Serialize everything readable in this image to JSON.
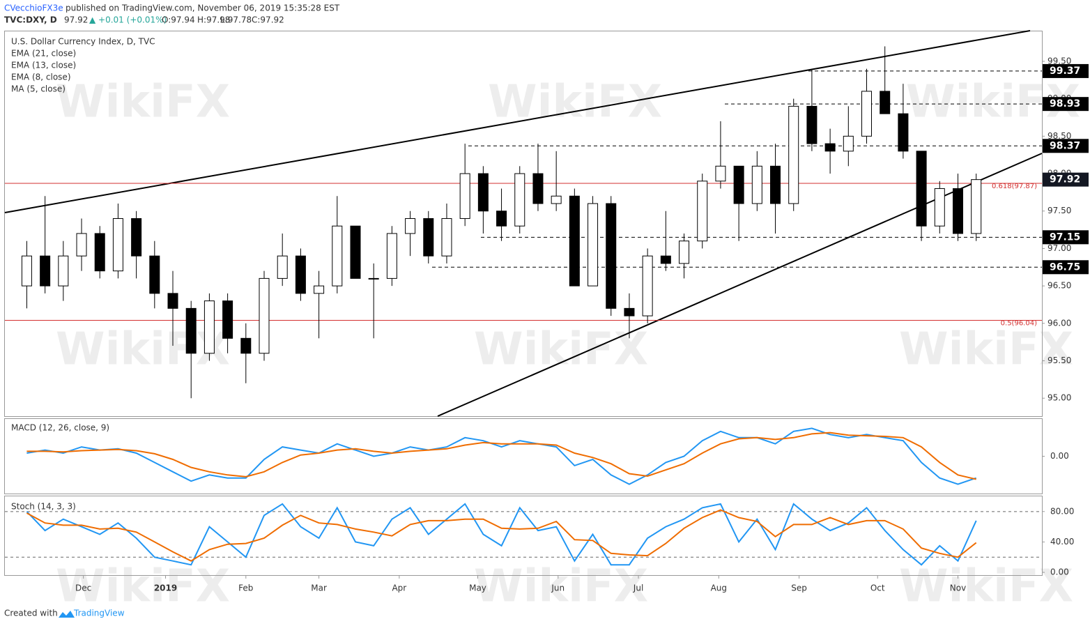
{
  "header": {
    "author": "CVecchioFX3e",
    "published": "published on TradingView.com, November 06, 2019 15:35:28 EST",
    "symbol": "TVC:DXY, D",
    "last": "97.92",
    "change": "▲ +0.01 (+0.01%)",
    "open": "O:97.94",
    "high": "H:97.98",
    "low": "L:97.78",
    "close": "C:97.92"
  },
  "footer": {
    "created": "Created with",
    "brand": "TradingView"
  },
  "watermark": "WikiFX",
  "chart_data": {
    "type": "candlestick",
    "legend": [
      "U.S. Dollar Currency Index, D, TVC",
      "EMA (21, close)",
      "EMA (13, close)",
      "EMA (8, close)",
      "MA (5, close)"
    ],
    "categories": [
      null,
      null,
      null,
      null,
      null,
      null,
      null,
      null,
      null,
      null,
      null,
      null,
      null,
      null,
      null,
      null,
      null,
      null,
      null,
      null,
      null,
      null,
      null,
      null,
      null,
      null,
      null,
      null,
      null,
      null,
      null,
      null,
      null,
      null,
      null,
      null,
      null,
      null,
      null,
      null,
      null,
      null,
      null,
      null,
      null,
      null,
      null,
      null,
      null,
      null,
      null,
      null,
      null
    ],
    "xlim": [
      -1.2,
      55.6
    ],
    "xticks": [
      {
        "value": 3.1,
        "label": "Dec"
      },
      {
        "value": 7.6,
        "label": "2019"
      },
      {
        "value": 12,
        "label": "Feb"
      },
      {
        "value": 16,
        "label": "Mar"
      },
      {
        "value": 20.4,
        "label": "Apr"
      },
      {
        "value": 24.7,
        "label": "May"
      },
      {
        "value": 29.1,
        "label": "Jun"
      },
      {
        "value": 33.5,
        "label": "Jul"
      },
      {
        "value": 37.9,
        "label": "Aug"
      },
      {
        "value": 42.3,
        "label": "Sep"
      },
      {
        "value": 46.6,
        "label": "Oct"
      },
      {
        "value": 51,
        "label": "Nov"
      }
    ],
    "open": [
      96.5,
      96.9,
      96.5,
      96.9,
      97.2,
      96.7,
      97.4,
      96.9,
      96.4,
      96.2,
      95.6,
      96.3,
      95.8,
      95.6,
      96.6,
      96.9,
      96.4,
      96.5,
      97.3,
      96.6,
      96.6,
      97.2,
      97.4,
      96.9,
      97.4,
      98.0,
      97.5,
      97.3,
      98.0,
      97.6,
      97.7,
      96.5,
      97.6,
      96.2,
      96.1,
      96.9,
      96.8,
      97.1,
      97.9,
      98.1,
      97.6,
      98.1,
      97.6,
      98.9,
      98.4,
      98.3,
      98.5,
      99.1,
      98.8,
      98.3,
      97.3,
      97.8,
      97.2
    ],
    "high": [
      97.1,
      97.7,
      97.1,
      97.4,
      97.3,
      97.6,
      97.5,
      97.1,
      96.7,
      96.3,
      96.4,
      96.4,
      96.0,
      96.7,
      97.2,
      97.0,
      96.7,
      97.7,
      97.3,
      96.8,
      97.3,
      97.5,
      97.5,
      97.6,
      98.4,
      98.1,
      97.8,
      98.1,
      98.4,
      98.3,
      97.8,
      97.7,
      97.7,
      96.4,
      97.0,
      97.5,
      97.2,
      98.0,
      98.7,
      98.1,
      98.3,
      98.4,
      99.0,
      99.4,
      98.6,
      98.9,
      99.4,
      99.7,
      99.2,
      98.3,
      97.9,
      98.0,
      98.0
    ],
    "low": [
      96.2,
      96.4,
      96.3,
      96.7,
      96.6,
      96.6,
      96.6,
      96.2,
      95.7,
      95.0,
      95.5,
      95.6,
      95.2,
      95.5,
      96.5,
      96.3,
      95.8,
      96.4,
      96.6,
      95.8,
      96.5,
      96.9,
      96.8,
      96.8,
      97.3,
      97.2,
      97.1,
      97.2,
      97.5,
      97.5,
      96.5,
      96.5,
      96.1,
      95.8,
      96.0,
      96.7,
      96.6,
      97.0,
      97.8,
      97.1,
      97.5,
      97.2,
      97.5,
      98.3,
      98.0,
      98.1,
      98.4,
      98.8,
      98.2,
      97.1,
      97.2,
      97.1,
      97.1
    ],
    "close": [
      96.9,
      96.5,
      96.9,
      97.2,
      96.7,
      97.4,
      96.9,
      96.4,
      96.2,
      95.6,
      96.3,
      95.8,
      95.6,
      96.6,
      96.9,
      96.4,
      96.5,
      97.3,
      96.6,
      96.6,
      97.2,
      97.4,
      96.9,
      97.4,
      98.0,
      97.5,
      97.3,
      98.0,
      97.6,
      97.7,
      96.5,
      97.6,
      96.2,
      96.1,
      96.9,
      96.8,
      97.1,
      97.9,
      98.1,
      97.6,
      98.1,
      97.6,
      98.9,
      98.4,
      98.3,
      98.5,
      99.1,
      98.8,
      98.3,
      97.3,
      97.8,
      97.2,
      97.92
    ],
    "up_color": "#ffffff",
    "down_color": "#000000",
    "ylim": [
      94.76,
      99.9
    ],
    "yticks": [
      {
        "value": 95,
        "label": "95.00"
      },
      {
        "value": 95.5,
        "label": "95.50"
      },
      {
        "value": 96,
        "label": "96.00"
      },
      {
        "value": 96.5,
        "label": "96.50"
      },
      {
        "value": 97,
        "label": "97.00"
      },
      {
        "value": 97.5,
        "label": "97.50"
      },
      {
        "value": 98,
        "label": "98.00"
      },
      {
        "value": 98.5,
        "label": "98.50"
      },
      {
        "value": 99,
        "label": "99.00"
      },
      {
        "value": 99.5,
        "label": "99.50"
      }
    ],
    "levels": [
      99.37,
      98.93,
      98.37,
      97.15,
      96.75
    ],
    "last_price": 97.92,
    "fib": [
      {
        "value": 97.87,
        "label": "0.618(97.87)"
      },
      {
        "value": 96.04,
        "label": "0.5(96.04)"
      }
    ],
    "fib_color": "#d32f2f",
    "macd": {
      "title": "MACD (12, 26, close, 9)",
      "ylim": [
        -0.6,
        0.6
      ],
      "yticks": [
        {
          "value": 0,
          "label": "0.00"
        }
      ],
      "series": [
        {
          "color": "#2196f3",
          "values": [
            0.05,
            0.1,
            0.05,
            0.15,
            0.1,
            0.12,
            0.05,
            -0.1,
            -0.25,
            -0.4,
            -0.3,
            -0.35,
            -0.35,
            -0.05,
            0.15,
            0.1,
            0.05,
            0.2,
            0.1,
            0.0,
            0.05,
            0.15,
            0.1,
            0.15,
            0.3,
            0.25,
            0.15,
            0.25,
            0.2,
            0.15,
            -0.15,
            -0.05,
            -0.3,
            -0.45,
            -0.3,
            -0.1,
            0.0,
            0.25,
            0.4,
            0.3,
            0.3,
            0.2,
            0.4,
            0.45,
            0.35,
            0.3,
            0.35,
            0.3,
            0.25,
            -0.1,
            -0.35,
            -0.45,
            -0.35
          ]
        },
        {
          "color": "#ef6c00",
          "values": [
            0.08,
            0.08,
            0.07,
            0.09,
            0.1,
            0.11,
            0.09,
            0.04,
            -0.05,
            -0.18,
            -0.25,
            -0.3,
            -0.33,
            -0.25,
            -0.1,
            0.02,
            0.05,
            0.1,
            0.12,
            0.08,
            0.05,
            0.08,
            0.1,
            0.12,
            0.18,
            0.22,
            0.2,
            0.2,
            0.2,
            0.18,
            0.05,
            -0.02,
            -0.12,
            -0.28,
            -0.32,
            -0.22,
            -0.12,
            0.05,
            0.2,
            0.28,
            0.3,
            0.27,
            0.3,
            0.36,
            0.38,
            0.34,
            0.33,
            0.32,
            0.3,
            0.15,
            -0.1,
            -0.3,
            -0.37
          ]
        }
      ]
    },
    "stoch": {
      "title": "Stoch (14, 3, 3)",
      "ylim": [
        -3.6,
        100
      ],
      "yticks": [
        {
          "value": 0,
          "label": "0.00"
        },
        {
          "value": 40,
          "label": "40.00"
        },
        {
          "value": 80,
          "label": "80.00"
        }
      ],
      "bands": [
        80,
        20
      ],
      "series": [
        {
          "color": "#2196f3",
          "values": [
            80,
            55,
            70,
            60,
            50,
            65,
            45,
            20,
            15,
            10,
            60,
            40,
            20,
            75,
            90,
            60,
            45,
            85,
            40,
            35,
            70,
            85,
            50,
            70,
            90,
            50,
            35,
            85,
            55,
            60,
            15,
            50,
            10,
            10,
            45,
            60,
            70,
            85,
            90,
            40,
            70,
            30,
            90,
            70,
            55,
            65,
            85,
            55,
            30,
            10,
            35,
            15,
            68
          ]
        },
        {
          "color": "#ef6c00",
          "values": [
            78,
            65,
            62,
            62,
            57,
            58,
            53,
            40,
            27,
            15,
            30,
            37,
            38,
            45,
            62,
            75,
            65,
            63,
            57,
            53,
            48,
            63,
            68,
            68,
            70,
            70,
            58,
            57,
            58,
            67,
            43,
            42,
            25,
            23,
            22,
            38,
            58,
            72,
            82,
            72,
            67,
            47,
            63,
            63,
            72,
            63,
            68,
            68,
            57,
            32,
            25,
            20,
            39
          ]
        }
      ]
    }
  }
}
